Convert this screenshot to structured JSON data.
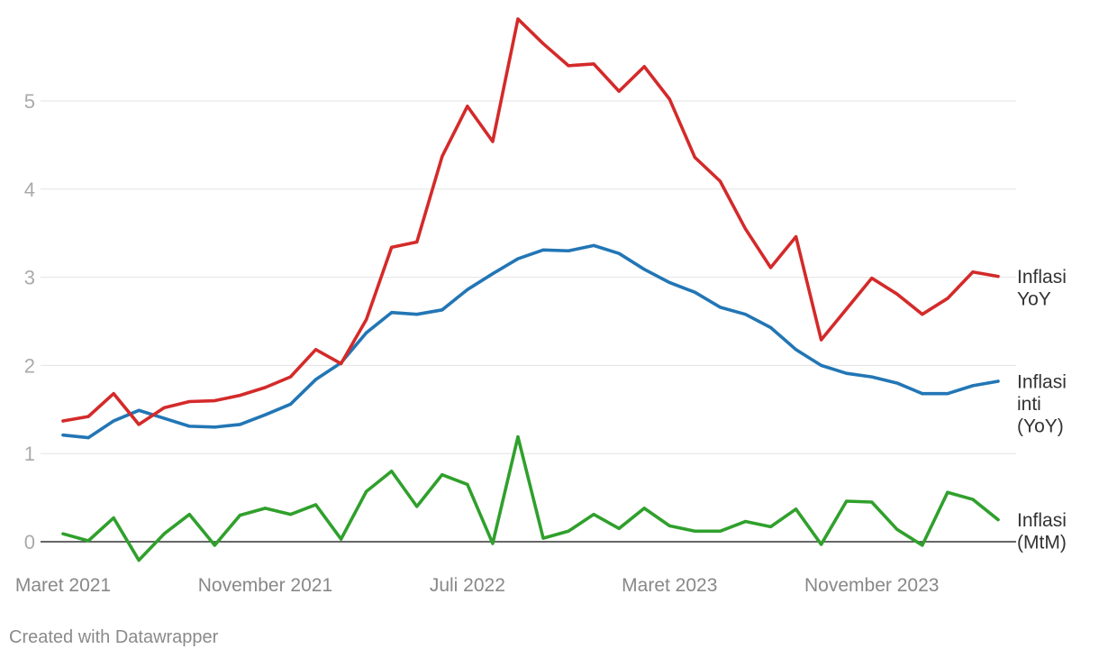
{
  "chart_data": {
    "type": "line",
    "x": [
      "2021-03",
      "2021-04",
      "2021-05",
      "2021-06",
      "2021-07",
      "2021-08",
      "2021-09",
      "2021-10",
      "2021-11",
      "2021-12",
      "2022-01",
      "2022-02",
      "2022-03",
      "2022-04",
      "2022-05",
      "2022-06",
      "2022-07",
      "2022-08",
      "2022-09",
      "2022-10",
      "2022-11",
      "2022-12",
      "2023-01",
      "2023-02",
      "2023-03",
      "2023-04",
      "2023-05",
      "2023-06",
      "2023-07",
      "2023-08",
      "2023-09",
      "2023-10",
      "2023-11",
      "2023-12",
      "2024-01",
      "2024-02",
      "2024-03",
      "2024-04"
    ],
    "x_ticks": [
      {
        "x": "2021-03",
        "label": "Maret 2021"
      },
      {
        "x": "2021-11",
        "label": "November 2021"
      },
      {
        "x": "2022-07",
        "label": "Juli 2022"
      },
      {
        "x": "2023-03",
        "label": "Maret 2023"
      },
      {
        "x": "2023-11",
        "label": "November 2023"
      }
    ],
    "y_ticks": [
      0,
      1,
      2,
      3,
      4,
      5
    ],
    "ylim": [
      -0.25,
      6
    ],
    "grid": true,
    "legend": "direct labels at right end of lines",
    "series": [
      {
        "name": "Inflasi inti (YoY)",
        "color": "#2276b5",
        "values": [
          1.21,
          1.18,
          1.37,
          1.49,
          1.4,
          1.31,
          1.3,
          1.33,
          1.44,
          1.56,
          1.84,
          2.03,
          2.37,
          2.6,
          2.58,
          2.63,
          2.86,
          3.04,
          3.21,
          3.31,
          3.3,
          3.36,
          3.27,
          3.09,
          2.94,
          2.83,
          2.66,
          2.58,
          2.43,
          2.18,
          2.0,
          1.91,
          1.87,
          1.8,
          1.68,
          1.68,
          1.77,
          1.82
        ]
      },
      {
        "name": "Inflasi YoY",
        "color": "#d42a2a",
        "values": [
          1.37,
          1.42,
          1.68,
          1.33,
          1.52,
          1.59,
          1.6,
          1.66,
          1.75,
          1.87,
          2.18,
          2.02,
          2.52,
          3.34,
          3.4,
          4.37,
          4.94,
          4.54,
          5.93,
          5.65,
          5.4,
          5.42,
          5.11,
          5.39,
          5.02,
          4.36,
          4.09,
          3.55,
          3.11,
          3.46,
          2.29,
          2.64,
          2.99,
          2.81,
          2.58,
          2.76,
          3.06,
          3.01
        ]
      },
      {
        "name": "Inflasi (MtM)",
        "color": "#30a02c",
        "values": [
          0.09,
          0.01,
          0.27,
          -0.21,
          0.09,
          0.31,
          -0.04,
          0.3,
          0.38,
          0.31,
          0.42,
          0.03,
          0.57,
          0.8,
          0.4,
          0.76,
          0.65,
          -0.02,
          1.19,
          0.04,
          0.12,
          0.31,
          0.15,
          0.38,
          0.18,
          0.12,
          0.12,
          0.23,
          0.17,
          0.37,
          -0.03,
          0.46,
          0.45,
          0.14,
          -0.04,
          0.56,
          0.48,
          0.25
        ]
      }
    ]
  },
  "footer": {
    "credit": "Created with Datawrapper"
  }
}
